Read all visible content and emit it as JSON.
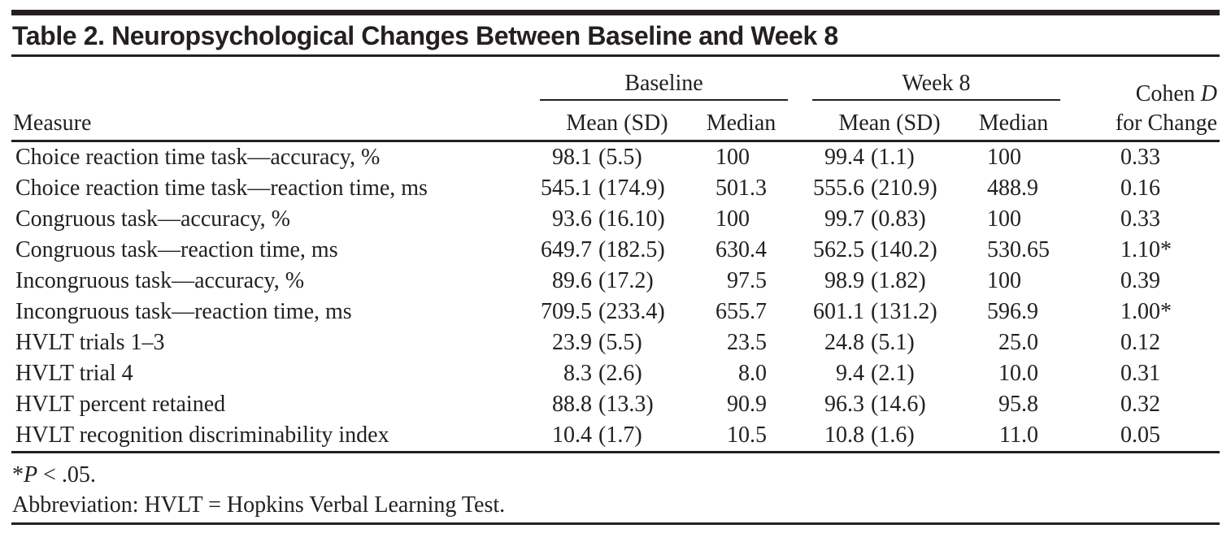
{
  "colors": {
    "ink": "#242021"
  },
  "table": {
    "title": "Table 2. Neuropsychological Changes Between Baseline and Week 8",
    "columns": {
      "measure": "Measure",
      "group1": "Baseline",
      "group2": "Week 8",
      "mean_sd": "Mean (SD)",
      "median": "Median",
      "cohen_prefix": "Cohen ",
      "cohen_italic": "D",
      "cohen_line2": "for Change"
    },
    "rows": [
      {
        "measure": "Choice reaction time task—accuracy, %",
        "baseline_mean_sd": "98.1 (5.5)",
        "baseline_median": "100",
        "week8_mean_sd": "99.4 (1.1)",
        "week8_median": "100",
        "cohen_d": "0.33"
      },
      {
        "measure": "Choice reaction time task—reaction time, ms",
        "baseline_mean_sd": "545.1 (174.9)",
        "baseline_median": "501.3",
        "week8_mean_sd": "555.6 (210.9)",
        "week8_median": "488.9",
        "cohen_d": "0.16"
      },
      {
        "measure": "Congruous task—accuracy, %",
        "baseline_mean_sd": "93.6 (16.10)",
        "baseline_median": "100",
        "week8_mean_sd": "99.7 (0.83)",
        "week8_median": "100",
        "cohen_d": "0.33"
      },
      {
        "measure": "Congruous task—reaction time, ms",
        "baseline_mean_sd": "649.7 (182.5)",
        "baseline_median": "630.4",
        "week8_mean_sd": "562.5 (140.2)",
        "week8_median": "530.65",
        "cohen_d": "1.10*"
      },
      {
        "measure": "Incongruous task—accuracy, %",
        "baseline_mean_sd": "89.6 (17.2)",
        "baseline_median": "97.5",
        "week8_mean_sd": "98.9 (1.82)",
        "week8_median": "100",
        "cohen_d": "0.39"
      },
      {
        "measure": "Incongruous task—reaction time, ms",
        "baseline_mean_sd": "709.5 (233.4)",
        "baseline_median": "655.7",
        "week8_mean_sd": "601.1 (131.2)",
        "week8_median": "596.9",
        "cohen_d": "1.00*"
      },
      {
        "measure": "HVLT trials 1–3",
        "baseline_mean_sd": "23.9 (5.5)",
        "baseline_median": "23.5",
        "week8_mean_sd": "24.8 (5.1)",
        "week8_median": "25.0",
        "cohen_d": "0.12"
      },
      {
        "measure": "HVLT trial 4",
        "baseline_mean_sd": "8.3 (2.6)",
        "baseline_median": "8.0",
        "week8_mean_sd": "9.4 (2.1)",
        "week8_median": "10.0",
        "cohen_d": "0.31"
      },
      {
        "measure": "HVLT percent retained",
        "baseline_mean_sd": "88.8 (13.3)",
        "baseline_median": "90.9",
        "week8_mean_sd": "96.3 (14.6)",
        "week8_median": "95.8",
        "cohen_d": "0.32"
      },
      {
        "measure": "HVLT recognition discriminability index",
        "baseline_mean_sd": "10.4 (1.7)",
        "baseline_median": "10.5",
        "week8_mean_sd": "10.8 (1.6)",
        "week8_median": "11.0",
        "cohen_d": "0.05"
      }
    ],
    "footnotes": {
      "sig_prefix": "*",
      "sig_italic": "P",
      "sig_suffix": " < .05.",
      "abbreviation": "Abbreviation: HVLT = Hopkins Verbal Learning Test."
    }
  }
}
